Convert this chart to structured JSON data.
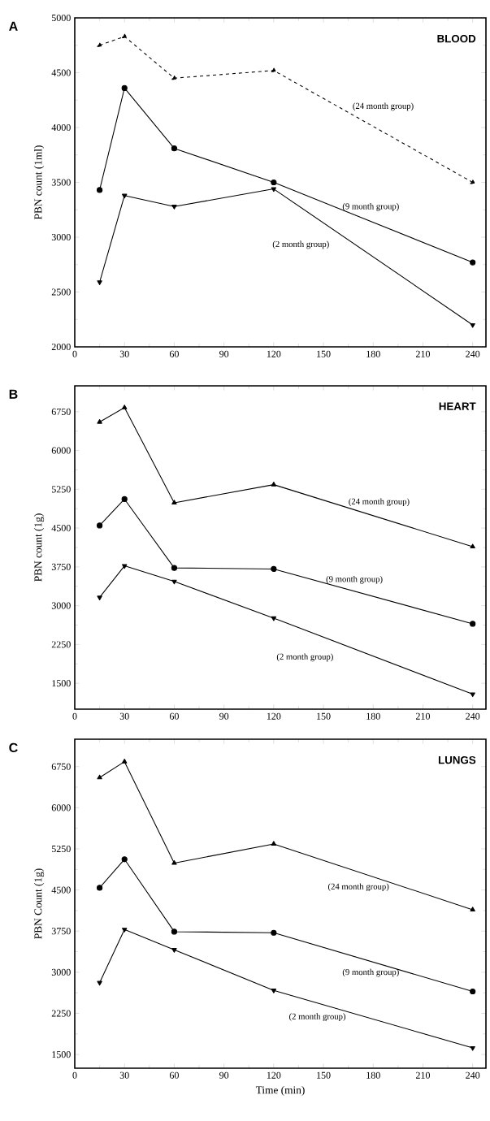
{
  "chart_data": [
    {
      "type": "line",
      "title": "BLOOD",
      "ylabel": "PBN count (1ml)",
      "annotations": [
        "A"
      ],
      "x": [
        15,
        30,
        60,
        120,
        240
      ],
      "xlim": [
        0,
        248
      ],
      "ylim": [
        2000,
        5000
      ],
      "xticks": [
        0,
        30,
        60,
        90,
        120,
        150,
        180,
        210,
        240
      ],
      "yticks": [
        2000,
        2500,
        3000,
        3500,
        4000,
        4500,
        5000
      ],
      "series": [
        {
          "name": "(24 month group)",
          "color": "#000000",
          "marker": "triangle",
          "line_style": "dashed",
          "values": [
            4750,
            4830,
            4450,
            4520,
            3500
          ]
        },
        {
          "name": "(9 month group)",
          "color": "#000000",
          "marker": "circle",
          "line_style": "solid",
          "values": [
            3430,
            4360,
            3810,
            3500,
            2770
          ]
        },
        {
          "name": "(2 month group)",
          "color": "#000000",
          "marker": "triangle_down",
          "line_style": "solid",
          "values": [
            2590,
            3380,
            3280,
            3440,
            2200
          ]
        }
      ]
    },
    {
      "type": "line",
      "title": "HEART",
      "ylabel": "PBN count (1g)",
      "annotations": [
        "B"
      ],
      "x": [
        15,
        30,
        60,
        120,
        240
      ],
      "xlim": [
        0,
        248
      ],
      "ylim": [
        1000,
        7250
      ],
      "xticks": [
        0,
        30,
        60,
        90,
        120,
        150,
        180,
        210,
        240
      ],
      "yticks": [
        1500,
        2250,
        3000,
        3750,
        4500,
        5250,
        6000,
        6750
      ],
      "series": [
        {
          "name": "(24 month group)",
          "color": "#000000",
          "marker": "triangle",
          "line_style": "solid",
          "values": [
            6550,
            6830,
            4990,
            5340,
            4140
          ]
        },
        {
          "name": "(9 month group)",
          "color": "#000000",
          "marker": "circle",
          "line_style": "solid",
          "values": [
            4550,
            5060,
            3730,
            3710,
            2650
          ]
        },
        {
          "name": "(2 month group)",
          "color": "#000000",
          "marker": "triangle_down",
          "line_style": "solid",
          "values": [
            3160,
            3770,
            3470,
            2760,
            1290
          ]
        }
      ]
    },
    {
      "type": "line",
      "title": "LUNGS",
      "ylabel": "PBN Count (1g)",
      "xlabel": "Time (min)",
      "annotations": [
        "C"
      ],
      "x": [
        15,
        30,
        60,
        120,
        240
      ],
      "xlim": [
        0,
        248
      ],
      "ylim": [
        1250,
        7250
      ],
      "xticks": [
        0,
        30,
        60,
        90,
        120,
        150,
        180,
        210,
        240
      ],
      "yticks": [
        1500,
        2250,
        3000,
        3750,
        4500,
        5250,
        6000,
        6750
      ],
      "series": [
        {
          "name": "(24 month group)",
          "color": "#000000",
          "marker": "triangle",
          "line_style": "solid",
          "values": [
            6550,
            6840,
            4990,
            5340,
            4140
          ]
        },
        {
          "name": "(9 month group)",
          "color": "#000000",
          "marker": "circle",
          "line_style": "solid",
          "values": [
            4540,
            5060,
            3740,
            3720,
            2650
          ]
        },
        {
          "name": "(2 month group)",
          "color": "#000000",
          "marker": "triangle_down",
          "line_style": "solid",
          "values": [
            2810,
            3780,
            3410,
            2670,
            1620
          ]
        }
      ]
    }
  ]
}
